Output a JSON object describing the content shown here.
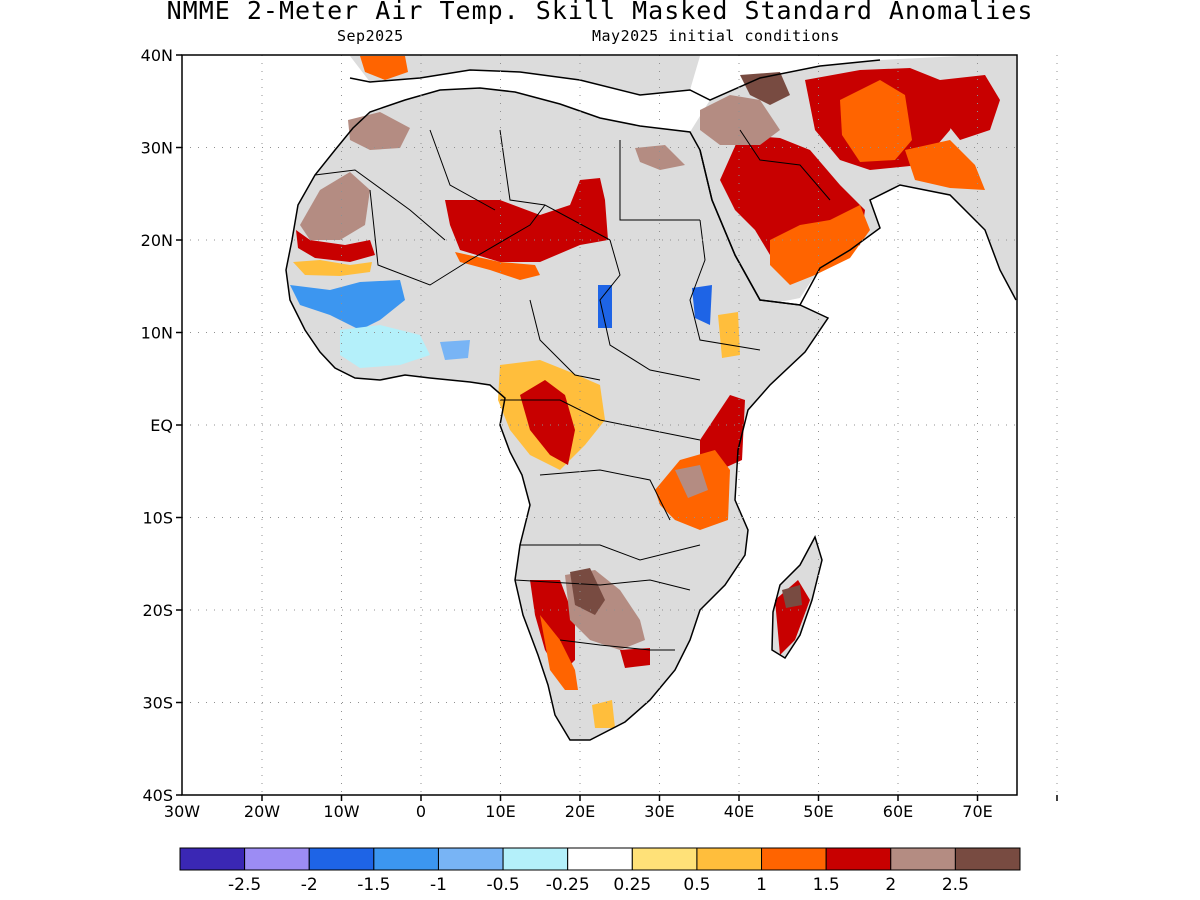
{
  "title": "NMME 2-Meter Air Temp. Skill Masked Standard Anomalies",
  "subtitle_target": "Sep2025",
  "subtitle_ic": "May2025 initial conditions",
  "lat_ticks": [
    "40N",
    "30N",
    "20N",
    "10N",
    "EQ",
    "10S",
    "20S",
    "30S",
    "40S"
  ],
  "lon_ticks": [
    "30W",
    "20W",
    "10W",
    "0",
    "10E",
    "20E",
    "30E",
    "40E",
    "50E",
    "60E",
    "70E"
  ],
  "legend": {
    "colors": [
      "#3a27b4",
      "#9c8cf4",
      "#1e64e6",
      "#3c96f0",
      "#78b4f5",
      "#b4f0fa",
      "#ffffff",
      "#ffe178",
      "#ffbe3c",
      "#ff6400",
      "#c80000",
      "#b48c82",
      "#784b41"
    ],
    "labels": [
      "-2.5",
      "-2",
      "-1.5",
      "-1",
      "-0.5",
      "-0.25",
      "0.25",
      "0.5",
      "1",
      "1.5",
      "2",
      "2.5"
    ]
  },
  "colors": {
    "land_mask": "#dcdcdc",
    "ocean": "#ffffff",
    "coast": "#000000"
  }
}
